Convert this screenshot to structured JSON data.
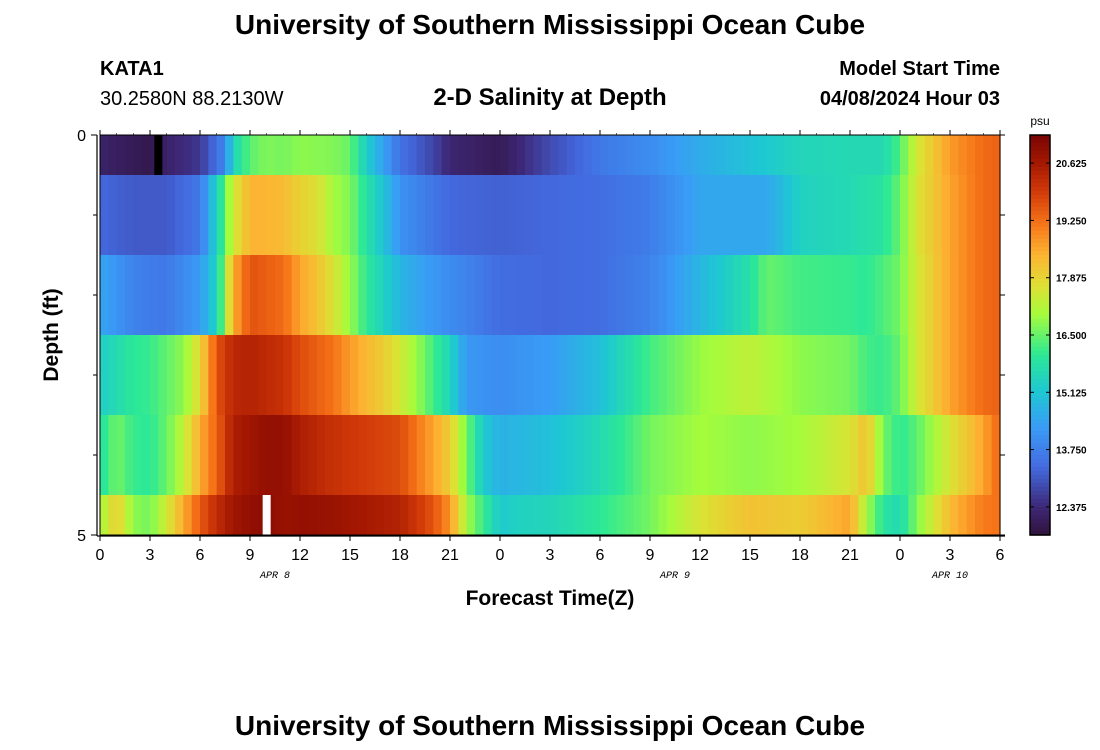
{
  "chart_data": {
    "type": "heatmap",
    "title": "University of Southern Mississippi Ocean Cube",
    "station": {
      "name": "KATA1",
      "coords": "30.2580N  88.2130W"
    },
    "subtitle": "2-D Salinity at Depth",
    "model_start": {
      "label": "Model Start Time",
      "value": "04/08/2024 Hour 03"
    },
    "footer_title": "University of Southern Mississippi Ocean Cube",
    "xlabel": "Forecast Time(Z)",
    "ylabel": "Depth (ft)",
    "x_ticks": [
      "0",
      "3",
      "6",
      "9",
      "12",
      "15",
      "18",
      "21",
      "0",
      "3",
      "6",
      "9",
      "12",
      "15",
      "18",
      "21",
      "0",
      "3",
      "6"
    ],
    "date_labels": [
      {
        "text": "APR 8",
        "tick_index": 3.5
      },
      {
        "text": "APR 9",
        "tick_index": 11.5
      },
      {
        "text": "APR 10",
        "tick_index": 17
      }
    ],
    "y_ticks": [
      "0",
      "5"
    ],
    "xlim": [
      0,
      54
    ],
    "ylim": [
      0,
      5
    ],
    "colorbar": {
      "unit": "psu",
      "ticks": [
        "20.625",
        "19.250",
        "17.875",
        "16.500",
        "15.125",
        "13.750",
        "12.375"
      ],
      "range": [
        11.7,
        21.3
      ]
    },
    "depth_layers": [
      {
        "top": 0,
        "bottom": 0.5,
        "x": [
          0,
          3,
          4,
          6,
          7.5,
          8,
          9,
          10,
          11,
          12,
          14,
          15,
          16,
          18,
          20,
          21,
          24,
          27,
          30,
          33,
          36,
          38,
          40,
          42,
          45,
          47,
          48,
          49,
          51,
          53,
          54
        ],
        "values": [
          12.2,
          11.9,
          12.2,
          12.6,
          13.9,
          15.5,
          16.4,
          16.7,
          16.6,
          16.8,
          16.7,
          16.5,
          15.3,
          13.5,
          12.8,
          12.3,
          12.0,
          12.9,
          13.6,
          14.0,
          14.6,
          14.9,
          15.2,
          15.5,
          15.6,
          15.6,
          16.3,
          17.5,
          18.7,
          19.3,
          19.4
        ],
        "markers": [
          {
            "x": 3.5,
            "color": "#000000"
          }
        ]
      },
      {
        "top": 0.5,
        "bottom": 1.5,
        "x": [
          0,
          2,
          4,
          6,
          7,
          8,
          9,
          10,
          11,
          12,
          13,
          14,
          15,
          16,
          17,
          18,
          21,
          24,
          27,
          30,
          33,
          36,
          39,
          40,
          42,
          45,
          47,
          48,
          49,
          51,
          53,
          54
        ],
        "values": [
          13.3,
          13.1,
          13.1,
          13.6,
          15.4,
          17.5,
          18.4,
          18.4,
          18.3,
          17.9,
          17.7,
          17.0,
          16.7,
          15.8,
          15.1,
          14.1,
          13.3,
          13.2,
          13.3,
          13.4,
          13.7,
          14.5,
          14.5,
          14.5,
          15.4,
          15.6,
          15.9,
          16.5,
          17.6,
          18.6,
          19.3,
          19.4
        ]
      },
      {
        "top": 1.5,
        "bottom": 2.5,
        "x": [
          0,
          2,
          4,
          6,
          7,
          8,
          9,
          11,
          12,
          13,
          14,
          15,
          16,
          18,
          20,
          21,
          24,
          27,
          30,
          33,
          36,
          39,
          40,
          42,
          45,
          46,
          47,
          48,
          49,
          51,
          53,
          54
        ],
        "values": [
          14.5,
          13.8,
          13.6,
          14.3,
          15.4,
          18.5,
          19.6,
          19.3,
          18.6,
          18.2,
          17.6,
          16.9,
          16.0,
          14.8,
          14.2,
          14.0,
          13.4,
          13.3,
          13.4,
          13.8,
          14.8,
          15.8,
          16.5,
          16.2,
          16.1,
          16.0,
          16.3,
          16.6,
          17.5,
          18.6,
          19.3,
          19.4
        ]
      },
      {
        "top": 2.5,
        "bottom": 3.5,
        "x": [
          0,
          2,
          3,
          5,
          6,
          7,
          8,
          9,
          11,
          12,
          14,
          15,
          17,
          18,
          19,
          21,
          22,
          24,
          27,
          30,
          33,
          36,
          39,
          42,
          45,
          46,
          47,
          48,
          49,
          51,
          53,
          54
        ],
        "values": [
          15.3,
          16.0,
          16.1,
          16.8,
          17.8,
          19.6,
          20.3,
          20.4,
          20.1,
          19.7,
          19.2,
          18.7,
          18.0,
          17.5,
          16.9,
          15.5,
          14.2,
          14.0,
          14.3,
          15.0,
          16.2,
          16.9,
          17.3,
          16.8,
          16.6,
          16.2,
          16.1,
          16.5,
          17.5,
          18.6,
          19.3,
          19.4
        ]
      },
      {
        "top": 3.5,
        "bottom": 4.5,
        "x": [
          0,
          1,
          2,
          3,
          4,
          5,
          6,
          7,
          8,
          9,
          10,
          11,
          12,
          14,
          16,
          18,
          20,
          21,
          22,
          23,
          24,
          27,
          30,
          33,
          36,
          39,
          42,
          45,
          46,
          47,
          48,
          49,
          51,
          53,
          54
        ],
        "values": [
          15.8,
          16.6,
          16.1,
          16.0,
          16.5,
          17.3,
          18.5,
          19.4,
          20.5,
          20.7,
          20.9,
          20.9,
          20.5,
          20.1,
          19.9,
          19.7,
          18.6,
          18.0,
          16.6,
          15.2,
          14.7,
          15.0,
          15.6,
          16.6,
          17.0,
          16.8,
          17.0,
          17.6,
          18.2,
          16.6,
          16.0,
          16.4,
          17.6,
          18.6,
          19.4
        ]
      },
      {
        "top": 4.5,
        "bottom": 5,
        "x": [
          0,
          1,
          2,
          3,
          4,
          5,
          6,
          7,
          8,
          9,
          10,
          11,
          12,
          14,
          16,
          18,
          20,
          21,
          22,
          23,
          24,
          25,
          27,
          30,
          33,
          36,
          39,
          42,
          45,
          46,
          47,
          48,
          49,
          51,
          53,
          54
        ],
        "values": [
          17.0,
          18.0,
          16.8,
          16.6,
          17.5,
          18.5,
          19.5,
          20.2,
          20.7,
          20.9,
          21.0,
          20.8,
          20.9,
          20.8,
          20.6,
          20.4,
          19.6,
          18.8,
          17.0,
          16.1,
          15.2,
          15.4,
          15.5,
          16.0,
          16.6,
          17.6,
          18.2,
          18.0,
          18.6,
          17.0,
          15.9,
          15.6,
          16.7,
          18.3,
          19.1,
          19.2
        ],
        "markers": [
          {
            "x": 10,
            "color": "#ffffff"
          }
        ]
      }
    ]
  }
}
